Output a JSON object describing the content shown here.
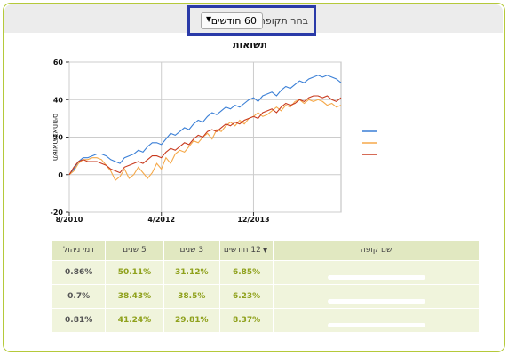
{
  "period": {
    "label": "בחר תקופה",
    "selected": "60 חודשים"
  },
  "chart_data": {
    "type": "line",
    "title": "תשואות",
    "ylabel": "תשואה באחוזים",
    "xlabel": "",
    "ylim": [
      -20,
      60
    ],
    "yticks": [
      -20,
      0,
      20,
      40,
      60
    ],
    "xtick_labels": [
      "8/2010",
      "4/2012",
      "12/2013"
    ],
    "legend_colors": [
      "#3a7fd6",
      "#f5a94a",
      "#c83a1e"
    ],
    "n_points": 60,
    "series": [
      {
        "color": "#3a7fd6",
        "values": [
          0,
          3,
          7,
          9,
          9,
          10,
          11,
          11,
          10,
          8,
          7,
          6,
          9,
          10,
          11,
          13,
          12,
          15,
          17,
          17,
          16,
          19,
          22,
          21,
          23,
          25,
          24,
          27,
          29,
          28,
          31,
          33,
          32,
          34,
          36,
          35,
          37,
          36,
          38,
          40,
          41,
          39,
          42,
          43,
          44,
          42,
          45,
          47,
          46,
          48,
          50,
          49,
          51,
          52,
          53,
          52,
          53,
          52,
          51,
          49
        ]
      },
      {
        "color": "#f5a94a",
        "values": [
          0,
          2,
          6,
          8,
          8,
          9,
          9,
          8,
          5,
          2,
          -3,
          -1,
          3,
          -2,
          0,
          4,
          1,
          -2,
          1,
          6,
          3,
          9,
          6,
          11,
          13,
          12,
          15,
          18,
          17,
          20,
          22,
          19,
          24,
          23,
          26,
          28,
          26,
          29,
          27,
          30,
          31,
          33,
          31,
          32,
          34,
          36,
          34,
          37,
          36,
          39,
          40,
          38,
          40,
          39,
          40,
          39,
          37,
          38,
          36,
          37
        ]
      },
      {
        "color": "#c83a1e",
        "values": [
          0,
          4,
          7,
          8,
          7,
          7,
          7,
          6,
          5,
          3,
          2,
          1,
          4,
          5,
          6,
          7,
          6,
          8,
          10,
          10,
          9,
          12,
          14,
          13,
          15,
          17,
          16,
          19,
          21,
          20,
          23,
          24,
          23,
          25,
          27,
          26,
          28,
          27,
          29,
          30,
          31,
          30,
          33,
          34,
          35,
          33,
          36,
          38,
          37,
          38,
          40,
          39,
          41,
          42,
          42,
          41,
          42,
          40,
          39,
          41
        ]
      }
    ]
  },
  "table": {
    "headers": [
      "שם קופה",
      "12 חודשים",
      "3 שנים",
      "5 שנים",
      "דמי ניהול"
    ],
    "rows": [
      {
        "m12": "6.85%",
        "y3": "31.12%",
        "y5": "50.11%",
        "fee": "0.86%"
      },
      {
        "m12": "6.23%",
        "y3": "38.5%",
        "y5": "38.43%",
        "fee": "0.7%"
      },
      {
        "m12": "8.37%",
        "y3": "29.81%",
        "y5": "41.24%",
        "fee": "0.81%"
      }
    ]
  }
}
